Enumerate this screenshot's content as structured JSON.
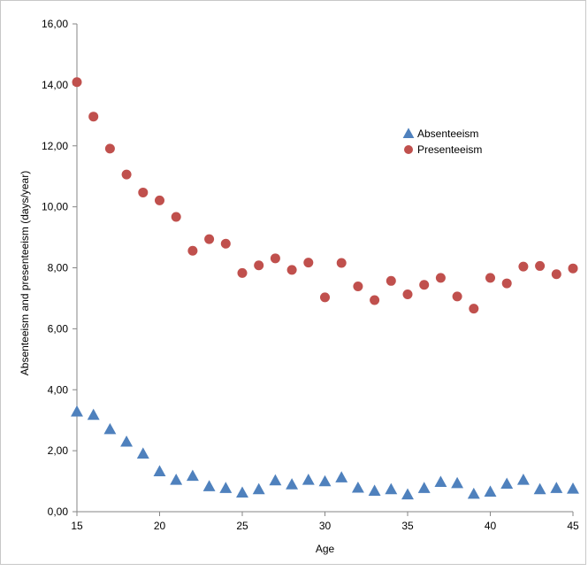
{
  "chart_data": {
    "type": "scatter",
    "xlabel": "Age",
    "ylabel": "Absenteeism and presenteeism (days/year)",
    "xlim": [
      15,
      45
    ],
    "ylim": [
      0,
      16
    ],
    "x_ticks": [
      "15",
      "20",
      "25",
      "30",
      "35",
      "40",
      "45"
    ],
    "y_ticks": [
      "0,00",
      "2,00",
      "4,00",
      "6,00",
      "8,00",
      "10,00",
      "12,00",
      "14,00",
      "16,00"
    ],
    "grid": false,
    "legend_position": "top-right",
    "x": [
      15,
      16,
      17,
      18,
      19,
      20,
      21,
      22,
      23,
      24,
      25,
      26,
      27,
      28,
      29,
      30,
      31,
      32,
      33,
      34,
      35,
      36,
      37,
      38,
      39,
      40,
      41,
      42,
      43,
      44,
      45
    ],
    "series": [
      {
        "name": "Absenteeism",
        "marker": "triangle",
        "color": "#4F81BD",
        "values": [
          3.28,
          3.17,
          2.7,
          2.29,
          1.9,
          1.32,
          1.04,
          1.17,
          0.83,
          0.77,
          0.62,
          0.73,
          1.02,
          0.89,
          1.04,
          0.99,
          1.12,
          0.78,
          0.68,
          0.73,
          0.56,
          0.77,
          0.97,
          0.93,
          0.58,
          0.65,
          0.91,
          1.04,
          0.73,
          0.77,
          0.75
        ]
      },
      {
        "name": "Presenteeism",
        "marker": "circle",
        "color": "#C0504D",
        "values": [
          14.09,
          12.96,
          11.91,
          11.06,
          10.47,
          10.21,
          9.67,
          8.56,
          8.94,
          8.79,
          7.83,
          8.08,
          8.31,
          7.93,
          8.17,
          7.03,
          8.16,
          7.39,
          6.94,
          7.57,
          7.13,
          7.44,
          7.67,
          7.06,
          6.66,
          7.67,
          7.49,
          8.04,
          8.06,
          7.79,
          7.98
        ]
      }
    ]
  }
}
